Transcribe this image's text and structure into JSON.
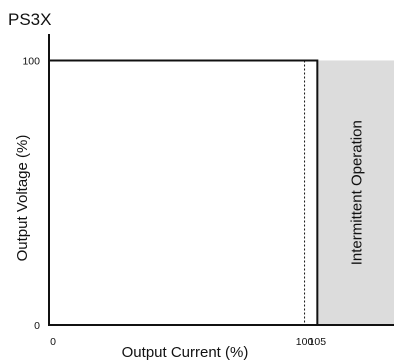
{
  "model": "PS3X",
  "chart_data": {
    "type": "line",
    "title": "PS3X",
    "xlabel": "Output Current (%)",
    "ylabel": "Output Voltage (%)",
    "xlim": [
      0,
      135
    ],
    "ylim": [
      0,
      110
    ],
    "x_ticks": [
      {
        "value": 0,
        "label": "0"
      },
      {
        "value": 100,
        "label": "100"
      },
      {
        "value": 105,
        "label": "105"
      }
    ],
    "y_ticks": [
      {
        "value": 0,
        "label": "0"
      },
      {
        "value": 100,
        "label": "100"
      }
    ],
    "series": [
      {
        "points": [
          [
            0,
            100
          ],
          [
            105,
            100
          ],
          [
            105,
            0
          ]
        ],
        "color": "#111111",
        "style": "solid"
      }
    ],
    "reference_lines": [
      {
        "axis": "x",
        "value": 100,
        "from": 0,
        "to": 100,
        "style": "dotted",
        "color": "#111111"
      }
    ],
    "shaded_regions": [
      {
        "x_from": 105,
        "x_to": 135,
        "y_from": 0,
        "y_to": 100,
        "color": "#dcdcdc",
        "label": "Intermittent Operation"
      }
    ],
    "grid": false,
    "legend": "none"
  }
}
